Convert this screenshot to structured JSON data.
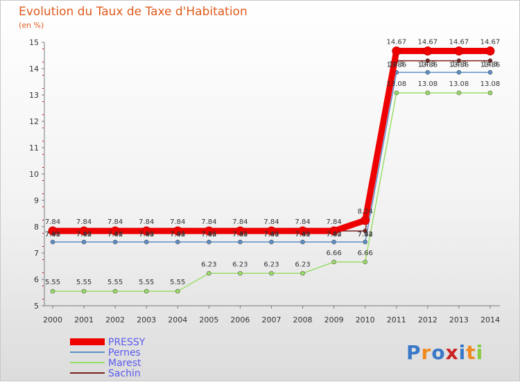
{
  "chart_data": {
    "type": "line",
    "title": "Evolution du Taux de Taxe d'Habitation",
    "ylabel": "(en %)",
    "xlabel": "",
    "categories": [
      "2000",
      "2001",
      "2002",
      "2003",
      "2004",
      "2005",
      "2006",
      "2007",
      "2008",
      "2009",
      "2010",
      "2011",
      "2012",
      "2013",
      "2014"
    ],
    "ylim": [
      5,
      15
    ],
    "yticks": [
      5,
      6,
      7,
      8,
      9,
      10,
      11,
      12,
      13,
      14,
      15
    ],
    "grid": false,
    "legend_position": "bottom-left",
    "series": [
      {
        "name": "PRESSY",
        "color": "#ee0000",
        "values": [
          7.84,
          7.84,
          7.84,
          7.84,
          7.84,
          7.84,
          7.84,
          7.84,
          7.84,
          7.84,
          8.24,
          14.67,
          14.67,
          14.67,
          14.67
        ]
      },
      {
        "name": "Pernes",
        "color": "#5b8ec8",
        "values": [
          7.42,
          7.42,
          7.42,
          7.42,
          7.42,
          7.42,
          7.42,
          7.42,
          7.42,
          7.42,
          7.42,
          13.86,
          13.86,
          13.86,
          13.86
        ]
      },
      {
        "name": "Marest",
        "color": "#99dd66",
        "values": [
          5.55,
          5.55,
          5.55,
          5.55,
          5.55,
          6.23,
          6.23,
          6.23,
          6.23,
          6.66,
          6.66,
          13.08,
          13.08,
          13.08,
          13.08
        ]
      },
      {
        "name": "Sachin",
        "color": "#7a2020",
        "values": [
          7.84,
          7.84,
          7.84,
          7.84,
          7.84,
          7.84,
          7.84,
          7.84,
          7.84,
          7.84,
          7.84,
          14.3,
          14.3,
          14.3,
          14.3
        ]
      }
    ],
    "data_labels": {
      "PRESSY": [
        "7.84",
        "7.84",
        "7.84",
        "7.84",
        "7.84",
        "7.84",
        "7.84",
        "7.84",
        "7.84",
        "7.84",
        "8.24",
        "14.67",
        "14.67",
        "14.67",
        "14.67"
      ],
      "Pernes": [
        "7.42",
        "7.42",
        "7.42",
        "7.42",
        "7.42",
        "7.42",
        "7.42",
        "7.42",
        "7.42",
        "7.42",
        "7.42",
        "13.86",
        "13.86",
        "13.86",
        "13.86"
      ],
      "Marest": [
        "5.55",
        "5.55",
        "5.55",
        "5.55",
        "5.55",
        "6.23",
        "6.23",
        "6.23",
        "6.23",
        "6.66",
        "6.66",
        "13.08",
        "13.08",
        "13.08",
        "13.08"
      ],
      "Sachin": [
        "7.84",
        "7.84",
        "7.84",
        "7.84",
        "7.84",
        "7.84",
        "7.84",
        "7.84",
        "7.84",
        "7.84",
        "7.84",
        "14.3",
        "14.3",
        "14.3",
        "14.3"
      ]
    }
  },
  "logo": {
    "text": "Proxiti"
  }
}
